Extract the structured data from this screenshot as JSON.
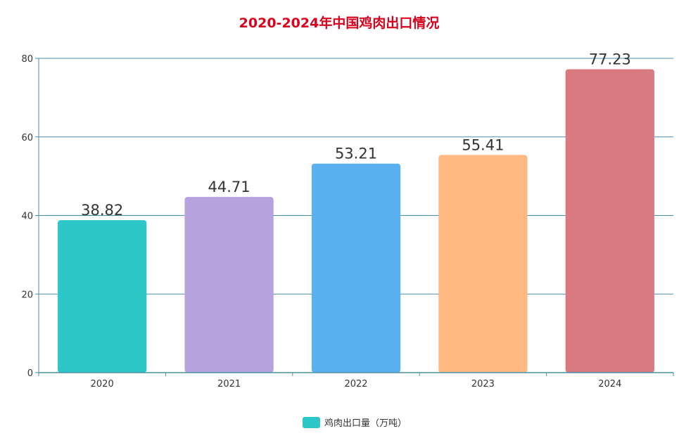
{
  "chart_data": {
    "type": "bar",
    "title": "2020-2024年中国鸡肉出口情况",
    "categories": [
      "2020",
      "2021",
      "2022",
      "2023",
      "2024"
    ],
    "series": [
      {
        "name": "鸡肉出口量（万吨）",
        "values": [
          38.82,
          44.71,
          53.21,
          55.41,
          77.23
        ],
        "data_labels": [
          "38.82",
          "44.71",
          "53.21",
          "55.41",
          "77.23"
        ]
      }
    ],
    "bar_colors": [
      "#2ec7c9",
      "#b6a2de",
      "#5ab1ef",
      "#ffb980",
      "#d87a80"
    ],
    "ylim": [
      0,
      80
    ],
    "yticks": [
      0,
      20,
      40,
      60,
      80
    ],
    "ytick_labels": [
      "0",
      "20",
      "40",
      "60",
      "80"
    ],
    "grid": true,
    "legend_position": "bottom-center",
    "title_color": "#d9001b",
    "axis_color": "#4a8fa8"
  }
}
